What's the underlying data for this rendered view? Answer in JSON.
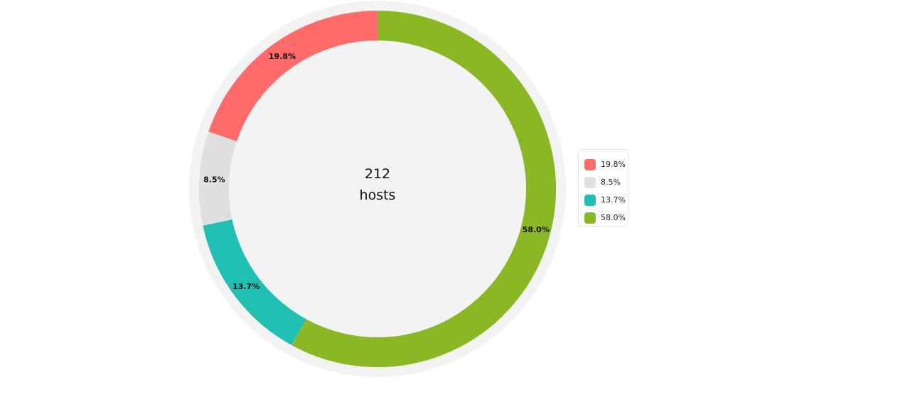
{
  "chart_data": {
    "type": "pie",
    "style": "donut",
    "center_label": {
      "line1": "212",
      "line2": "hosts"
    },
    "slices": [
      {
        "label": "19.8%",
        "value": 19.8,
        "color": "#ff6b6b"
      },
      {
        "label": "8.5%",
        "value": 8.5,
        "color": "#e0e0e0"
      },
      {
        "label": "13.7%",
        "value": 13.7,
        "color": "#20bfb3"
      },
      {
        "label": "58.0%",
        "value": 58.0,
        "color": "#8ab825"
      }
    ],
    "draw_order": [
      3,
      2,
      1,
      0
    ],
    "start_angle_deg": 0,
    "legend": {
      "position": "right",
      "items": [
        {
          "label": "19.8%",
          "color": "#ff6b6b"
        },
        {
          "label": "8.5%",
          "color": "#e0e0e0"
        },
        {
          "label": "13.7%",
          "color": "#20bfb3"
        },
        {
          "label": "58.0%",
          "color": "#8ab825"
        }
      ]
    },
    "colors": {
      "outer_ring": "#f3f3f3",
      "inner_fill": "#f3f3f3",
      "label_text": "#111111"
    }
  }
}
